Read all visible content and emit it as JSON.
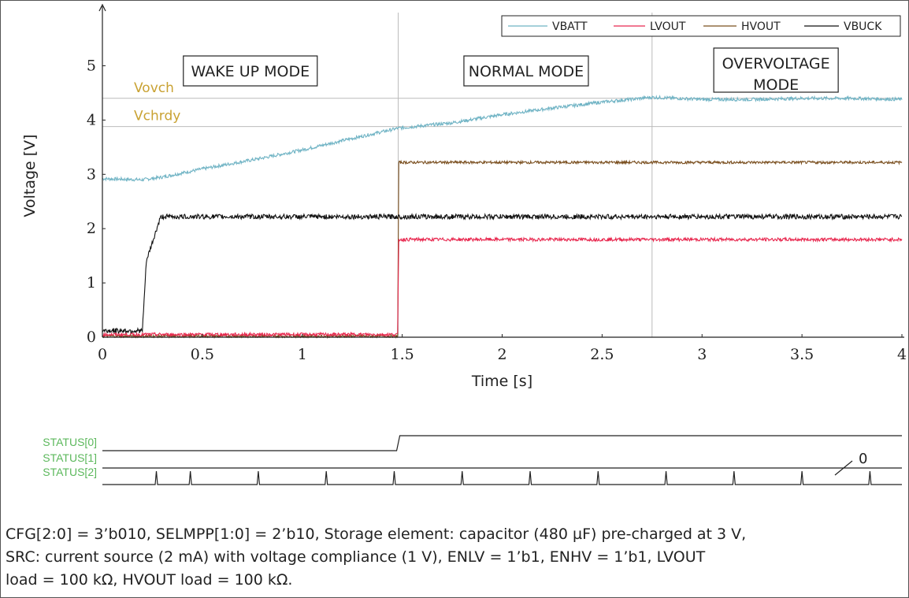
{
  "chart_data": {
    "type": "line",
    "xlabel": "Time [s]",
    "ylabel": "Voltage [V]",
    "xlim": [
      0,
      4
    ],
    "ylim": [
      0,
      5.95
    ],
    "xticks": [
      0,
      0.5,
      1,
      1.5,
      2,
      2.5,
      3,
      3.5,
      4
    ],
    "xtick_labels": [
      "0",
      "0.5",
      "1",
      "1.5",
      "2",
      "2.5",
      "3",
      "3.5",
      "4"
    ],
    "yticks": [
      0,
      1,
      2,
      3,
      4,
      5
    ],
    "ytick_labels": [
      "0",
      "1",
      "2",
      "3",
      "4",
      "5"
    ],
    "legend": {
      "placement": "top-right",
      "entries": [
        "VBATT",
        "LVOUT",
        "HVOUT",
        "VBUCK"
      ]
    },
    "colors": {
      "VBATT": "#6fb3c4",
      "LVOUT": "#e8284f",
      "HVOUT": "#7a4f1f",
      "VBUCK": "#111111",
      "reference": "#c9a233",
      "status": "#5cb85c",
      "grid": "#bbbbbb"
    },
    "reference_lines": [
      {
        "label": "Vovch",
        "y": 4.4
      },
      {
        "label": "Vchrdy",
        "y": 3.88
      }
    ],
    "mode_dividers": [
      1.48,
      2.75
    ],
    "modes": [
      {
        "label": "WAKE UP MODE",
        "x": 0.74
      },
      {
        "label": "NORMAL MODE",
        "x": 2.12
      },
      {
        "label_lines": [
          "OVERVOLTAGE",
          "MODE"
        ],
        "x": 3.37
      }
    ],
    "series": [
      {
        "name": "VBATT",
        "x": [
          0,
          0.2,
          0.3,
          0.5,
          0.8,
          1.0,
          1.2,
          1.48,
          1.75,
          2.0,
          2.25,
          2.5,
          2.75,
          3.0,
          3.25,
          3.5,
          3.75,
          4.0
        ],
        "y": [
          2.92,
          2.9,
          2.95,
          3.1,
          3.3,
          3.45,
          3.62,
          3.85,
          3.95,
          4.1,
          4.22,
          4.33,
          4.42,
          4.38,
          4.38,
          4.4,
          4.4,
          4.38
        ]
      },
      {
        "name": "LVOUT",
        "x": [
          0,
          1.478,
          1.482,
          4.0
        ],
        "y": [
          0.05,
          0.05,
          1.8,
          1.8
        ]
      },
      {
        "name": "HVOUT",
        "x": [
          0,
          1.478,
          1.482,
          4.0
        ],
        "y": [
          0.02,
          0.02,
          3.22,
          3.22
        ]
      },
      {
        "name": "VBUCK",
        "x": [
          0,
          0.2,
          0.22,
          0.29,
          0.3,
          4.0
        ],
        "y": [
          0.12,
          0.12,
          1.4,
          2.2,
          2.22,
          2.22
        ]
      }
    ],
    "status": {
      "labels": [
        "STATUS[0]",
        "STATUS[1]",
        "STATUS[2]"
      ],
      "status0_step_x": 1.48,
      "status2_pulse_x": [
        0.27,
        0.44,
        0.78,
        1.12,
        1.46,
        1.8,
        2.14,
        2.48,
        2.82,
        3.16,
        3.5,
        3.84
      ],
      "annotation": "0"
    }
  },
  "caption_lines": [
    "CFG[2:0] = 3’b010, SELMPP[1:0] = 2’b10, Storage element: capacitor (480 µF) pre-charged at 3 V,",
    "SRC: current source (2 mA) with voltage compliance (1 V), ENLV = 1’b1, ENHV = 1’b1, LVOUT",
    "load = 100 kΩ, HVOUT load = 100 kΩ."
  ]
}
